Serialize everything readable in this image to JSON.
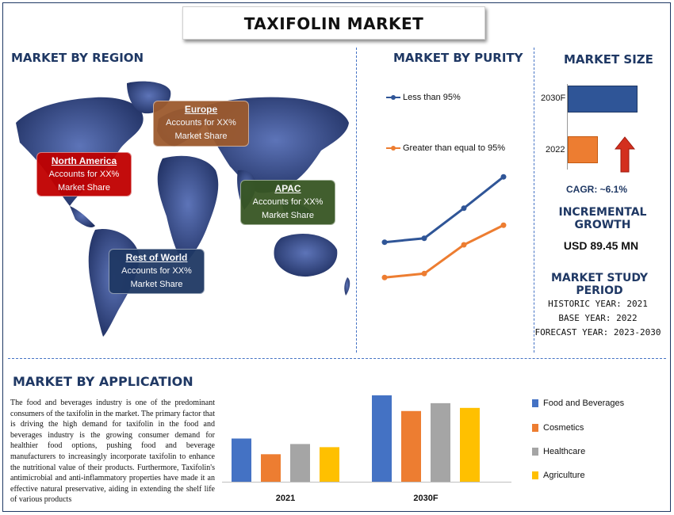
{
  "title": "TAXIFOLIN MARKET",
  "sections": {
    "region": "MARKET BY REGION",
    "purity": "MARKET BY PURITY",
    "size": "MARKET SIZE",
    "incremental": "INCREMENTAL GROWTH",
    "study": "MARKET STUDY PERIOD",
    "application": "MARKET BY APPLICATION"
  },
  "regions": [
    {
      "name": "North America",
      "text1": "Accounts for XX%",
      "text2": "Market Share",
      "color": "#c00000"
    },
    {
      "name": "Europe",
      "text1": "Accounts for XX%",
      "text2": "Market Share",
      "color": "#9c5a2e"
    },
    {
      "name": "APAC",
      "text1": "Accounts for XX%",
      "text2": "Market Share",
      "color": "#375623"
    },
    {
      "name": "Rest of World",
      "text1": "Accounts for XX%",
      "text2": "Market Share",
      "color": "#1f3864"
    }
  ],
  "market_size": {
    "bars": [
      {
        "label": "2030F",
        "color": "#2f5597"
      },
      {
        "label": "2022",
        "color": "#ed7d31"
      }
    ],
    "cagr": "CAGR:  ~6.1%",
    "incremental_value": "USD 89.45 MN"
  },
  "study_period": {
    "historic": "HISTORIC YEAR: 2021",
    "base": "BASE YEAR: 2022",
    "forecast": "FORECAST YEAR: 2023-2030"
  },
  "application_text": "The food and beverages industry is one of the predominant consumers of the taxifolin in the market. The primary factor that is driving the high demand for taxifolin in the food and beverages industry is the growing consumer demand for healthier food options, pushing food and beverage manufacturers to increasingly incorporate taxifolin to enhance the nutritional value of their products. Furthermore, Taxifolin's antimicrobial and anti-inflammatory properties have made it an effective natural preservative, aiding in extending the shelf life of various products",
  "chart_data": [
    {
      "type": "line",
      "title": "MARKET BY PURITY",
      "x": [
        1,
        2,
        3,
        4
      ],
      "series": [
        {
          "name": "Less than 95%",
          "color": "#2f5597",
          "values": [
            42,
            45,
            68,
            92
          ]
        },
        {
          "name": "Greater than equal to 95%",
          "color": "#ed7d31",
          "values": [
            15,
            18,
            40,
            55
          ]
        }
      ],
      "ylim": [
        0,
        100
      ]
    },
    {
      "type": "bar",
      "title": "MARKET SIZE",
      "categories": [
        "2030F",
        "2022"
      ],
      "values": [
        100,
        43
      ],
      "orientation": "horizontal"
    },
    {
      "type": "bar",
      "title": "MARKET BY APPLICATION",
      "categories": [
        "2021",
        "2030F"
      ],
      "series": [
        {
          "name": "Food and Beverages",
          "color": "#4472c4",
          "values": [
            55,
            110
          ]
        },
        {
          "name": "Cosmetics",
          "color": "#ed7d31",
          "values": [
            35,
            90
          ]
        },
        {
          "name": "Healthcare",
          "color": "#a5a5a5",
          "values": [
            48,
            100
          ]
        },
        {
          "name": "Agriculture",
          "color": "#ffc000",
          "values": [
            44,
            94
          ]
        }
      ],
      "ylim": [
        0,
        115
      ]
    }
  ]
}
